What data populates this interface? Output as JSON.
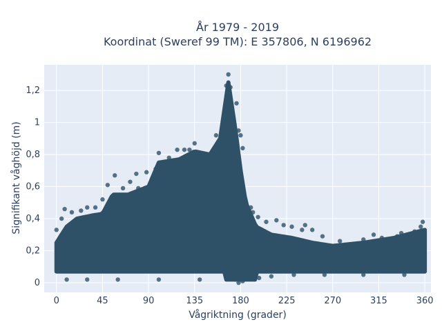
{
  "chart_data": {
    "type": "scatter",
    "title_line1": "År 1979 - 2019",
    "title_line2": "Koordinat (Sweref 99 TM): E 357806, N 6196962",
    "xlabel": "Vågriktning (grader)",
    "ylabel": "Signifikant våghöjd (m)",
    "xlim": [
      -12,
      366
    ],
    "ylim": [
      -0.06,
      1.36
    ],
    "x_ticks": [
      0,
      45,
      90,
      135,
      180,
      225,
      270,
      315,
      360
    ],
    "y_ticks": [
      0,
      0.2,
      0.4,
      0.6,
      0.8,
      1,
      1.2
    ],
    "y_tick_labels": [
      "0",
      "0,2",
      "0,4",
      "0,6",
      "0,8",
      "1",
      "1,2"
    ],
    "grid": true,
    "legend": "none",
    "marker_color": "#2f5168",
    "plot_background": "#e5ecf6",
    "envelope": [
      {
        "x": 0,
        "y": 0.3
      },
      {
        "x": 10,
        "y": 0.4
      },
      {
        "x": 20,
        "y": 0.45
      },
      {
        "x": 35,
        "y": 0.47
      },
      {
        "x": 45,
        "y": 0.48
      },
      {
        "x": 55,
        "y": 0.6
      },
      {
        "x": 70,
        "y": 0.6
      },
      {
        "x": 90,
        "y": 0.65
      },
      {
        "x": 100,
        "y": 0.8
      },
      {
        "x": 120,
        "y": 0.82
      },
      {
        "x": 135,
        "y": 0.87
      },
      {
        "x": 150,
        "y": 0.85
      },
      {
        "x": 160,
        "y": 0.95
      },
      {
        "x": 168,
        "y": 1.3
      },
      {
        "x": 175,
        "y": 1.0
      },
      {
        "x": 180,
        "y": 0.75
      },
      {
        "x": 185,
        "y": 0.55
      },
      {
        "x": 195,
        "y": 0.4
      },
      {
        "x": 210,
        "y": 0.35
      },
      {
        "x": 230,
        "y": 0.33
      },
      {
        "x": 250,
        "y": 0.3
      },
      {
        "x": 270,
        "y": 0.28
      },
      {
        "x": 300,
        "y": 0.3
      },
      {
        "x": 330,
        "y": 0.33
      },
      {
        "x": 360,
        "y": 0.38
      }
    ],
    "points": [
      {
        "x": 168,
        "y": 1.3
      },
      {
        "x": 166,
        "y": 1.23
      },
      {
        "x": 170,
        "y": 1.22
      },
      {
        "x": 168,
        "y": 1.14
      },
      {
        "x": 166,
        "y": 1.12
      },
      {
        "x": 176,
        "y": 1.12
      },
      {
        "x": 165,
        "y": 1.06
      },
      {
        "x": 167,
        "y": 1.05
      },
      {
        "x": 170,
        "y": 1.01
      },
      {
        "x": 164,
        "y": 0.99
      },
      {
        "x": 172,
        "y": 0.97
      },
      {
        "x": 178,
        "y": 0.95
      },
      {
        "x": 162,
        "y": 0.93
      },
      {
        "x": 180,
        "y": 0.92
      },
      {
        "x": 156,
        "y": 0.92
      },
      {
        "x": 182,
        "y": 0.84
      },
      {
        "x": 135,
        "y": 0.87
      },
      {
        "x": 118,
        "y": 0.83
      },
      {
        "x": 125,
        "y": 0.83
      },
      {
        "x": 130,
        "y": 0.83
      },
      {
        "x": 100,
        "y": 0.81
      },
      {
        "x": 140,
        "y": 0.81
      },
      {
        "x": 153,
        "y": 0.8
      },
      {
        "x": 110,
        "y": 0.78
      },
      {
        "x": 105,
        "y": 0.74
      },
      {
        "x": 97,
        "y": 0.71
      },
      {
        "x": 88,
        "y": 0.69
      },
      {
        "x": 78,
        "y": 0.68
      },
      {
        "x": 57,
        "y": 0.67
      },
      {
        "x": 50,
        "y": 0.61
      },
      {
        "x": 65,
        "y": 0.59
      },
      {
        "x": 72,
        "y": 0.63
      },
      {
        "x": 80,
        "y": 0.59
      },
      {
        "x": 45,
        "y": 0.52
      },
      {
        "x": 38,
        "y": 0.47
      },
      {
        "x": 30,
        "y": 0.47
      },
      {
        "x": 24,
        "y": 0.45
      },
      {
        "x": 15,
        "y": 0.44
      },
      {
        "x": 8,
        "y": 0.46
      },
      {
        "x": 5,
        "y": 0.4
      },
      {
        "x": 0,
        "y": 0.33
      },
      {
        "x": 190,
        "y": 0.47
      },
      {
        "x": 192,
        "y": 0.44
      },
      {
        "x": 197,
        "y": 0.41
      },
      {
        "x": 205,
        "y": 0.38
      },
      {
        "x": 215,
        "y": 0.39
      },
      {
        "x": 222,
        "y": 0.36
      },
      {
        "x": 230,
        "y": 0.35
      },
      {
        "x": 240,
        "y": 0.33
      },
      {
        "x": 243,
        "y": 0.36
      },
      {
        "x": 250,
        "y": 0.33
      },
      {
        "x": 260,
        "y": 0.29
      },
      {
        "x": 277,
        "y": 0.26
      },
      {
        "x": 300,
        "y": 0.27
      },
      {
        "x": 310,
        "y": 0.3
      },
      {
        "x": 318,
        "y": 0.28
      },
      {
        "x": 333,
        "y": 0.29
      },
      {
        "x": 337,
        "y": 0.31
      },
      {
        "x": 350,
        "y": 0.32
      },
      {
        "x": 356,
        "y": 0.35
      },
      {
        "x": 358,
        "y": 0.38
      },
      {
        "x": 175,
        "y": 0.02
      },
      {
        "x": 178,
        "y": 0.0
      },
      {
        "x": 182,
        "y": 0.01
      },
      {
        "x": 198,
        "y": 0.03
      },
      {
        "x": 210,
        "y": 0.04
      },
      {
        "x": 232,
        "y": 0.05
      },
      {
        "x": 262,
        "y": 0.05
      },
      {
        "x": 300,
        "y": 0.05
      },
      {
        "x": 340,
        "y": 0.05
      },
      {
        "x": 10,
        "y": 0.02
      },
      {
        "x": 30,
        "y": 0.02
      },
      {
        "x": 60,
        "y": 0.02
      },
      {
        "x": 100,
        "y": 0.02
      },
      {
        "x": 140,
        "y": 0.02
      }
    ]
  }
}
